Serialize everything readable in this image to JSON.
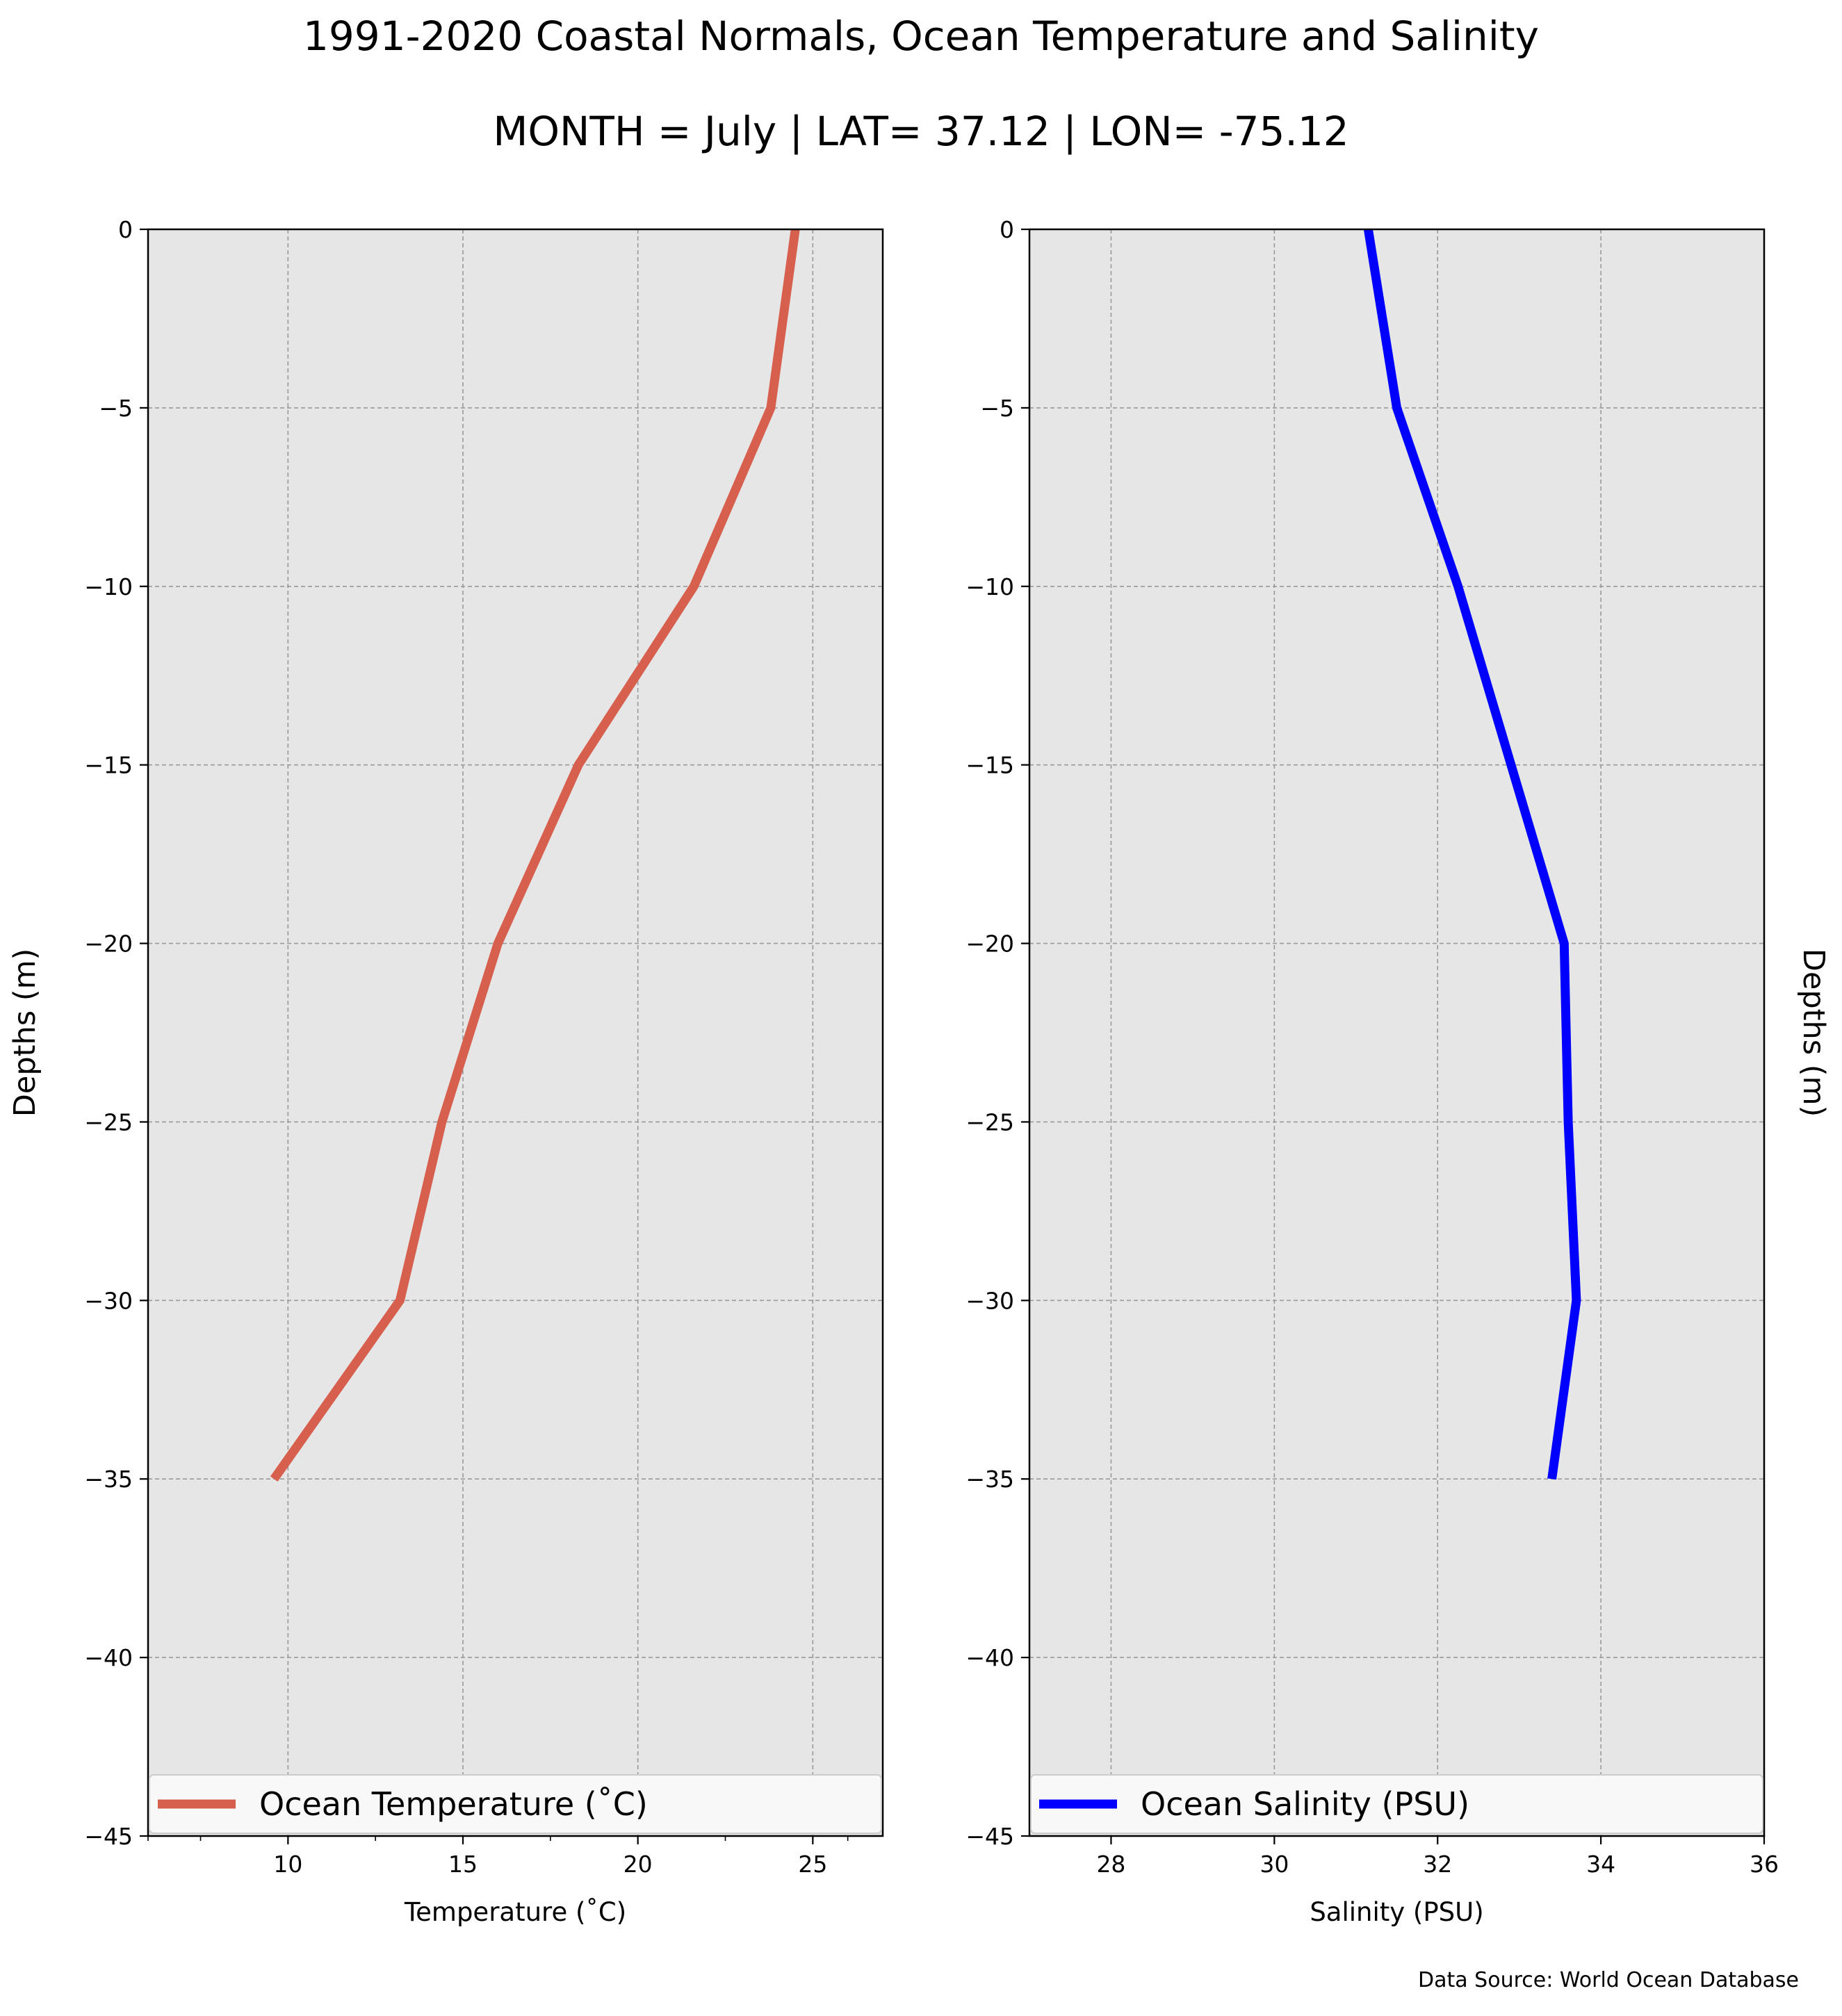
{
  "figure": {
    "title": "1991-2020 Coastal Normals, Ocean Temperature and Salinity",
    "subtitle": "MONTH = July | LAT= 37.12 | LON= -75.12",
    "source_note": "Data Source: World Ocean Database"
  },
  "colors": {
    "temperature_line": "#d65f4d",
    "salinity_line": "#0000ff",
    "plot_background": "#e6e6e6",
    "grid": "#9a9a9a"
  },
  "chart_data": [
    {
      "type": "line",
      "xlabel": "Temperature ($^\\circ$C)",
      "xlabel_display": "Temperature (˚C)",
      "ylabel": "Depths (m)",
      "xlim": [
        6,
        27
      ],
      "ylim": [
        -45,
        0
      ],
      "xticks": [
        10,
        15,
        20,
        25
      ],
      "xticks_minor": [
        6,
        7.5,
        12.5,
        17.5,
        22.5,
        26
      ],
      "yticks": [
        0,
        -5,
        -10,
        -15,
        -20,
        -25,
        -30,
        -35,
        -40,
        -45
      ],
      "ytick_labels": [
        "0",
        "−5",
        "−10",
        "−15",
        "−20",
        "−25",
        "−30",
        "−35",
        "−40",
        "−45"
      ],
      "grid": true,
      "legend_placement": "lower-center",
      "series": [
        {
          "name": "Ocean Temperature (˚C)",
          "x": [
            24.5,
            23.8,
            21.6,
            18.3,
            16.0,
            14.4,
            13.2,
            9.6
          ],
          "y": [
            0,
            -5,
            -10,
            -15,
            -20,
            -25,
            -30,
            -35
          ]
        }
      ]
    },
    {
      "type": "line",
      "xlabel": "Salinity (PSU)",
      "ylabel": "Depths (m)",
      "xlim": [
        27,
        36
      ],
      "ylim": [
        -45,
        0
      ],
      "xticks": [
        28,
        30,
        32,
        34,
        36
      ],
      "yticks": [
        0,
        -5,
        -10,
        -15,
        -20,
        -25,
        -30,
        -35,
        -40,
        -45
      ],
      "ytick_labels": [
        "0",
        "−5",
        "−10",
        "−15",
        "−20",
        "−25",
        "−30",
        "−35",
        "−40",
        "−45"
      ],
      "grid": true,
      "legend_placement": "lower-center",
      "series": [
        {
          "name": "Ocean Salinity (PSU)",
          "x": [
            31.15,
            31.5,
            32.25,
            32.9,
            33.55,
            33.6,
            33.7,
            33.4
          ],
          "y": [
            0,
            -5,
            -10,
            -15,
            -20,
            -25,
            -30,
            -35
          ]
        }
      ]
    }
  ]
}
